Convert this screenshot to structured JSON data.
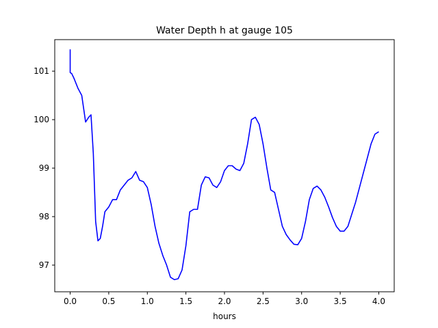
{
  "chart_data": {
    "type": "line",
    "title": "Water Depth h at gauge 105",
    "xlabel": "hours",
    "ylabel": "",
    "xlim": [
      -0.2,
      4.2
    ],
    "ylim": [
      96.45,
      101.65
    ],
    "xticks": [
      "0.0",
      "0.5",
      "1.0",
      "1.5",
      "2.0",
      "2.5",
      "3.0",
      "3.5",
      "4.0"
    ],
    "yticks": [
      "97",
      "98",
      "99",
      "100",
      "101"
    ],
    "grid": false,
    "legend": "none",
    "series": [
      {
        "color": "#0000ff",
        "x": [
          0.0,
          0.0,
          0.02,
          0.05,
          0.1,
          0.15,
          0.2,
          0.24,
          0.27,
          0.3,
          0.33,
          0.36,
          0.39,
          0.42,
          0.45,
          0.5,
          0.55,
          0.6,
          0.65,
          0.7,
          0.75,
          0.8,
          0.85,
          0.9,
          0.95,
          1.0,
          1.05,
          1.1,
          1.15,
          1.2,
          1.25,
          1.3,
          1.35,
          1.4,
          1.45,
          1.5,
          1.55,
          1.6,
          1.65,
          1.7,
          1.75,
          1.8,
          1.85,
          1.9,
          1.95,
          2.0,
          2.05,
          2.1,
          2.15,
          2.2,
          2.25,
          2.3,
          2.35,
          2.4,
          2.45,
          2.5,
          2.55,
          2.6,
          2.65,
          2.7,
          2.75,
          2.8,
          2.85,
          2.9,
          2.95,
          3.0,
          3.05,
          3.1,
          3.15,
          3.2,
          3.25,
          3.3,
          3.35,
          3.4,
          3.45,
          3.5,
          3.55,
          3.6,
          3.65,
          3.7,
          3.75,
          3.8,
          3.85,
          3.9,
          3.95,
          4.0
        ],
        "y": [
          101.45,
          100.97,
          100.95,
          100.85,
          100.65,
          100.5,
          99.95,
          100.05,
          100.1,
          99.3,
          97.9,
          97.5,
          97.55,
          97.8,
          98.1,
          98.2,
          98.35,
          98.35,
          98.55,
          98.65,
          98.75,
          98.8,
          98.93,
          98.75,
          98.72,
          98.6,
          98.25,
          97.8,
          97.45,
          97.2,
          97.0,
          96.75,
          96.7,
          96.72,
          96.9,
          97.4,
          98.1,
          98.15,
          98.15,
          98.65,
          98.82,
          98.8,
          98.65,
          98.6,
          98.72,
          98.95,
          99.05,
          99.05,
          98.98,
          98.95,
          99.1,
          99.5,
          100.0,
          100.05,
          99.9,
          99.5,
          99.0,
          98.55,
          98.5,
          98.15,
          97.8,
          97.63,
          97.52,
          97.43,
          97.42,
          97.55,
          97.9,
          98.35,
          98.58,
          98.63,
          98.55,
          98.4,
          98.2,
          97.98,
          97.8,
          97.7,
          97.7,
          97.8,
          98.05,
          98.3,
          98.6,
          98.9,
          99.2,
          99.5,
          99.7,
          99.75
        ]
      }
    ]
  }
}
